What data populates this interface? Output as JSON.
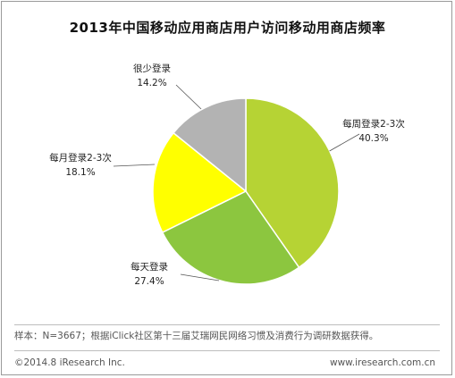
{
  "title": "2013年中国移动应用商店用户访问移动用商店频率",
  "footnote": "样本：N=3667；根据iClick社区第十三届艾瑞网民网络习惯及消费行为调研数据获得。",
  "copyright": "©2014.8 iResearch Inc.",
  "website": "www.iresearch.com.cn",
  "chart_data": {
    "type": "pie",
    "slices": [
      {
        "label": "每周登录2-3次",
        "value": 40.3,
        "value_label": "40.3%",
        "color": "#b6d334"
      },
      {
        "label": "每天登录",
        "value": 27.4,
        "value_label": "27.4%",
        "color": "#8cc63f"
      },
      {
        "label": "每月登录2-3次",
        "value": 18.1,
        "value_label": "18.1%",
        "color": "#ffff00"
      },
      {
        "label": "很少登录",
        "value": 14.2,
        "value_label": "14.2%",
        "color": "#b3b3b3"
      }
    ],
    "start": "12 o'clock",
    "direction": "clockwise"
  }
}
